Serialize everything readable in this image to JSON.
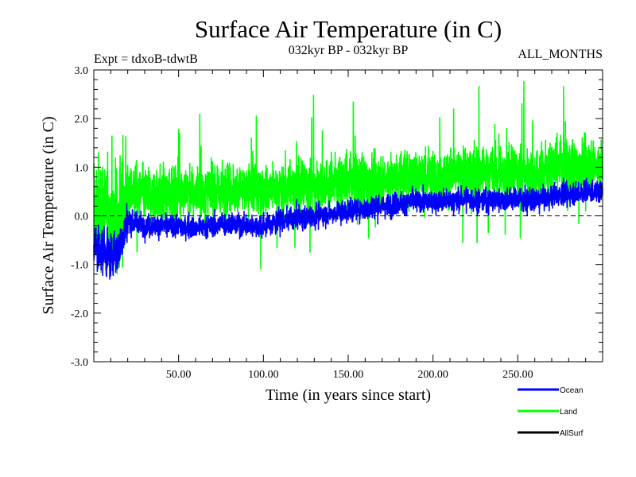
{
  "chart_data": {
    "type": "line",
    "title": "Surface Air Temperature (in C)",
    "subtitle_left": "Expt = tdxoB-tdwtB",
    "subtitle_center": "032kyr BP - 032kyr BP",
    "subtitle_right": "ALL_MONTHS",
    "xlabel": "Time (in years since start)",
    "ylabel": "Surface Air Temperature (in C)",
    "xlim": [
      0,
      300
    ],
    "ylim": [
      -3.0,
      3.0
    ],
    "xticks": [
      50,
      100,
      150,
      200,
      250
    ],
    "xtick_labels": [
      "50.00",
      "100.00",
      "150.00",
      "200.00",
      "250.00"
    ],
    "yticks": [
      -3.0,
      -2.0,
      -1.0,
      0.0,
      1.0,
      2.0,
      3.0
    ],
    "ytick_labels": [
      "-3.0",
      "-2.0",
      "-1.0",
      "0.0",
      "1.0",
      "2.0",
      "3.0"
    ],
    "reference_line_y": 0.0,
    "legend_position": "bottom-right",
    "series": [
      {
        "name": "Land",
        "color": "#00ff00",
        "x": [
          0,
          5,
          10,
          15,
          18,
          20,
          25,
          30,
          40,
          50,
          60,
          70,
          80,
          90,
          100,
          110,
          120,
          130,
          140,
          150,
          160,
          170,
          180,
          190,
          200,
          210,
          220,
          230,
          240,
          250,
          260,
          270,
          275,
          280,
          290,
          300
        ],
        "values": [
          0.1,
          0.2,
          0.0,
          -0.1,
          0.3,
          0.5,
          0.45,
          0.45,
          0.45,
          0.5,
          0.5,
          0.45,
          0.55,
          0.5,
          0.55,
          0.55,
          0.6,
          0.6,
          0.7,
          0.7,
          0.75,
          0.7,
          0.8,
          0.85,
          0.8,
          0.85,
          0.85,
          0.9,
          0.85,
          0.9,
          0.85,
          1.0,
          1.05,
          1.0,
          1.05,
          1.0
        ]
      },
      {
        "name": "Ocean",
        "color": "#0000ff",
        "x": [
          0,
          5,
          10,
          15,
          18,
          20,
          25,
          30,
          40,
          50,
          60,
          70,
          80,
          90,
          100,
          110,
          120,
          130,
          140,
          150,
          160,
          170,
          180,
          190,
          200,
          210,
          220,
          230,
          240,
          250,
          260,
          270,
          275,
          280,
          290,
          300
        ],
        "values": [
          -0.6,
          -0.7,
          -0.8,
          -0.7,
          -0.3,
          -0.1,
          -0.15,
          -0.2,
          -0.2,
          -0.2,
          -0.25,
          -0.2,
          -0.15,
          -0.2,
          -0.2,
          -0.1,
          -0.05,
          0.0,
          0.05,
          0.1,
          0.15,
          0.2,
          0.25,
          0.3,
          0.3,
          0.3,
          0.35,
          0.3,
          0.35,
          0.35,
          0.3,
          0.4,
          0.45,
          0.45,
          0.5,
          0.5
        ]
      },
      {
        "name": "AllSurf",
        "color": "#000000",
        "x": [],
        "values": []
      }
    ]
  }
}
